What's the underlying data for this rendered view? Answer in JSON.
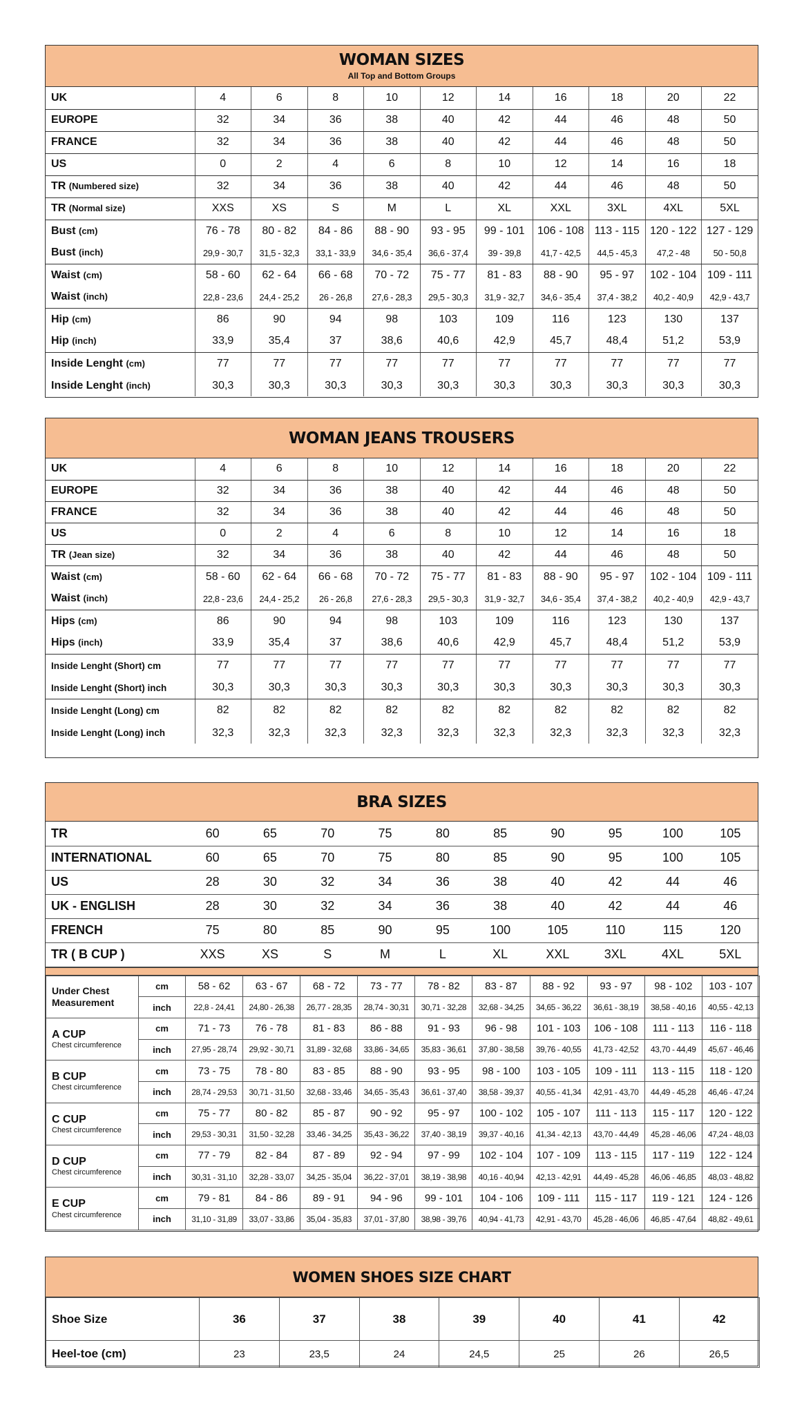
{
  "colors": {
    "header_bg": "#f6bd92",
    "border": "#333333"
  },
  "woman_sizes": {
    "title": "WOMAN SIZES",
    "subtitle": "All Top and Bottom Groups",
    "rows": [
      {
        "label": "UK",
        "unit": "",
        "values": [
          "4",
          "6",
          "8",
          "10",
          "12",
          "14",
          "16",
          "18",
          "20",
          "22"
        ]
      },
      {
        "label": "EUROPE",
        "unit": "",
        "values": [
          "32",
          "34",
          "36",
          "38",
          "40",
          "42",
          "44",
          "46",
          "48",
          "50"
        ]
      },
      {
        "label": "FRANCE",
        "unit": "",
        "values": [
          "32",
          "34",
          "36",
          "38",
          "40",
          "42",
          "44",
          "46",
          "48",
          "50"
        ]
      },
      {
        "label": "US",
        "unit": "",
        "values": [
          "0",
          "2",
          "4",
          "6",
          "8",
          "10",
          "12",
          "14",
          "16",
          "18"
        ]
      },
      {
        "label": "TR ",
        "unit": "(Numbered size)",
        "values": [
          "32",
          "34",
          "36",
          "38",
          "40",
          "42",
          "44",
          "46",
          "48",
          "50"
        ]
      },
      {
        "label": "TR ",
        "unit": "(Normal size)",
        "values": [
          "XXS",
          "XS",
          "S",
          "M",
          "L",
          "XL",
          "XXL",
          "3XL",
          "4XL",
          "5XL"
        ]
      },
      {
        "label": "Bust ",
        "unit": "(cm)",
        "values": [
          "76 - 78",
          "80 - 82",
          "84 - 86",
          "88 - 90",
          "93 - 95",
          "99 - 101",
          "106 - 108",
          "113 - 115",
          "120 - 122",
          "127 - 129"
        ]
      },
      {
        "label": "Bust ",
        "unit": "(inch)",
        "values": [
          "29,9 - 30,7",
          "31,5 - 32,3",
          "33,1 - 33,9",
          "34,6 - 35,4",
          "36,6 - 37,4",
          "39 - 39,8",
          "41,7 - 42,5",
          "44,5 - 45,3",
          "47,2 - 48",
          "50 - 50,8"
        ]
      },
      {
        "label": "Waist ",
        "unit": "(cm)",
        "values": [
          "58 - 60",
          "62 - 64",
          "66 - 68",
          "70 - 72",
          "75 - 77",
          "81 - 83",
          "88 - 90",
          "95 - 97",
          "102 - 104",
          "109 - 111"
        ]
      },
      {
        "label": "Waist ",
        "unit": "(inch)",
        "values": [
          "22,8 - 23,6",
          "24,4 - 25,2",
          "26 - 26,8",
          "27,6 - 28,3",
          "29,5 - 30,3",
          "31,9 - 32,7",
          "34,6 - 35,4",
          "37,4 - 38,2",
          "40,2 - 40,9",
          "42,9 - 43,7"
        ]
      },
      {
        "label": "Hip ",
        "unit": "(cm)",
        "values": [
          "86",
          "90",
          "94",
          "98",
          "103",
          "109",
          "116",
          "123",
          "130",
          "137"
        ]
      },
      {
        "label": "Hip ",
        "unit": "(inch)",
        "values": [
          "33,9",
          "35,4",
          "37",
          "38,6",
          "40,6",
          "42,9",
          "45,7",
          "48,4",
          "51,2",
          "53,9"
        ]
      },
      {
        "label": "Inside Lenght ",
        "unit": "(cm)",
        "values": [
          "77",
          "77",
          "77",
          "77",
          "77",
          "77",
          "77",
          "77",
          "77",
          "77"
        ]
      },
      {
        "label": "Inside Lenght ",
        "unit": "(inch)",
        "values": [
          "30,3",
          "30,3",
          "30,3",
          "30,3",
          "30,3",
          "30,3",
          "30,3",
          "30,3",
          "30,3",
          "30,3"
        ]
      }
    ]
  },
  "jeans": {
    "title": "WOMAN JEANS TROUSERS",
    "rows": [
      {
        "label": "UK",
        "unit": "",
        "values": [
          "4",
          "6",
          "8",
          "10",
          "12",
          "14",
          "16",
          "18",
          "20",
          "22"
        ]
      },
      {
        "label": "EUROPE",
        "unit": "",
        "values": [
          "32",
          "34",
          "36",
          "38",
          "40",
          "42",
          "44",
          "46",
          "48",
          "50"
        ]
      },
      {
        "label": "FRANCE",
        "unit": "",
        "values": [
          "32",
          "34",
          "36",
          "38",
          "40",
          "42",
          "44",
          "46",
          "48",
          "50"
        ]
      },
      {
        "label": "US",
        "unit": "",
        "values": [
          "0",
          "2",
          "4",
          "6",
          "8",
          "10",
          "12",
          "14",
          "16",
          "18"
        ]
      },
      {
        "label": "TR ",
        "unit": "(Jean size)",
        "values": [
          "32",
          "34",
          "36",
          "38",
          "40",
          "42",
          "44",
          "46",
          "48",
          "50"
        ]
      },
      {
        "label": "Waist ",
        "unit": "(cm)",
        "values": [
          "58 - 60",
          "62 - 64",
          "66 - 68",
          "70 - 72",
          "75 - 77",
          "81 - 83",
          "88 - 90",
          "95 - 97",
          "102 - 104",
          "109 - 111"
        ]
      },
      {
        "label": "Waist ",
        "unit": "(inch)",
        "values": [
          "22,8 - 23,6",
          "24,4 - 25,2",
          "26 - 26,8",
          "27,6 - 28,3",
          "29,5 - 30,3",
          "31,9 - 32,7",
          "34,6 - 35,4",
          "37,4 - 38,2",
          "40,2 - 40,9",
          "42,9 - 43,7"
        ]
      },
      {
        "label": "Hips ",
        "unit": "(cm)",
        "values": [
          "86",
          "90",
          "94",
          "98",
          "103",
          "109",
          "116",
          "123",
          "130",
          "137"
        ]
      },
      {
        "label": "Hips ",
        "unit": "(inch)",
        "values": [
          "33,9",
          "35,4",
          "37",
          "38,6",
          "40,6",
          "42,9",
          "45,7",
          "48,4",
          "51,2",
          "53,9"
        ]
      },
      {
        "label": "Inside Lenght (Short) cm",
        "unit": "",
        "values": [
          "77",
          "77",
          "77",
          "77",
          "77",
          "77",
          "77",
          "77",
          "77",
          "77"
        ]
      },
      {
        "label": "Inside Lenght (Short) inch",
        "unit": "",
        "values": [
          "30,3",
          "30,3",
          "30,3",
          "30,3",
          "30,3",
          "30,3",
          "30,3",
          "30,3",
          "30,3",
          "30,3"
        ]
      },
      {
        "label": "Inside Lenght (Long) cm",
        "unit": "",
        "values": [
          "82",
          "82",
          "82",
          "82",
          "82",
          "82",
          "82",
          "82",
          "82",
          "82"
        ]
      },
      {
        "label": "Inside Lenght (Long) inch",
        "unit": "",
        "values": [
          "32,3",
          "32,3",
          "32,3",
          "32,3",
          "32,3",
          "32,3",
          "32,3",
          "32,3",
          "32,3",
          "32,3"
        ]
      }
    ]
  },
  "bra": {
    "title": "BRA SIZES",
    "sizes": [
      {
        "label": "TR",
        "values": [
          "60",
          "65",
          "70",
          "75",
          "80",
          "85",
          "90",
          "95",
          "100",
          "105"
        ]
      },
      {
        "label": "INTERNATIONAL",
        "values": [
          "60",
          "65",
          "70",
          "75",
          "80",
          "85",
          "90",
          "95",
          "100",
          "105"
        ]
      },
      {
        "label": "US",
        "values": [
          "28",
          "30",
          "32",
          "34",
          "36",
          "38",
          "40",
          "42",
          "44",
          "46"
        ]
      },
      {
        "label": "UK - ENGLISH",
        "values": [
          "28",
          "30",
          "32",
          "34",
          "36",
          "38",
          "40",
          "42",
          "44",
          "46"
        ]
      },
      {
        "label": "FRENCH",
        "values": [
          "75",
          "80",
          "85",
          "90",
          "95",
          "100",
          "105",
          "110",
          "115",
          "120"
        ]
      },
      {
        "label": "TR ( B CUP )",
        "values": [
          "XXS",
          "XS",
          "S",
          "M",
          "L",
          "XL",
          "XXL",
          "3XL",
          "4XL",
          "5XL"
        ]
      }
    ],
    "measurements": [
      {
        "label": "Under Chest Measurement",
        "sub": "",
        "cm": [
          "58 - 62",
          "63 - 67",
          "68 - 72",
          "73 - 77",
          "78 - 82",
          "83 - 87",
          "88 - 92",
          "93 - 97",
          "98 - 102",
          "103 - 107"
        ],
        "inch": [
          "22,8 - 24,41",
          "24,80 - 26,38",
          "26,77 - 28,35",
          "28,74 - 30,31",
          "30,71 - 32,28",
          "32,68 - 34,25",
          "34,65 - 36,22",
          "36,61 - 38,19",
          "38,58 - 40,16",
          "40,55 - 42,13"
        ]
      },
      {
        "label": "A CUP",
        "sub": "Chest circumference",
        "cm": [
          "71 - 73",
          "76 - 78",
          "81 - 83",
          "86 - 88",
          "91 - 93",
          "96 - 98",
          "101 - 103",
          "106 - 108",
          "111 - 113",
          "116 - 118"
        ],
        "inch": [
          "27,95 - 28,74",
          "29,92 - 30,71",
          "31,89 - 32,68",
          "33,86 - 34,65",
          "35,83 - 36,61",
          "37,80 - 38,58",
          "39,76 - 40,55",
          "41,73 - 42,52",
          "43,70 - 44,49",
          "45,67 - 46,46"
        ]
      },
      {
        "label": "B CUP",
        "sub": "Chest circumference",
        "cm": [
          "73 - 75",
          "78 - 80",
          "83 - 85",
          "88 - 90",
          "93 - 95",
          "98 - 100",
          "103 - 105",
          "109 - 111",
          "113 - 115",
          "118 - 120"
        ],
        "inch": [
          "28,74 - 29,53",
          "30,71 - 31,50",
          "32,68 - 33,46",
          "34,65 - 35,43",
          "36,61 - 37,40",
          "38,58 - 39,37",
          "40,55 - 41,34",
          "42,91 - 43,70",
          "44,49 - 45,28",
          "46,46 - 47,24"
        ]
      },
      {
        "label": "C CUP",
        "sub": "Chest circumference",
        "cm": [
          "75 - 77",
          "80 - 82",
          "85 - 87",
          "90 - 92",
          "95 - 97",
          "100 - 102",
          "105 - 107",
          "111 - 113",
          "115 - 117",
          "120 - 122"
        ],
        "inch": [
          "29,53 - 30,31",
          "31,50 - 32,28",
          "33,46 - 34,25",
          "35,43 - 36,22",
          "37,40 - 38,19",
          "39,37 - 40,16",
          "41,34 - 42,13",
          "43,70 - 44,49",
          "45,28 - 46,06",
          "47,24 - 48,03"
        ]
      },
      {
        "label": "D CUP",
        "sub": "Chest circumference",
        "cm": [
          "77 - 79",
          "82 - 84",
          "87 - 89",
          "92 - 94",
          "97 - 99",
          "102 - 104",
          "107 - 109",
          "113 - 115",
          "117 - 119",
          "122 - 124"
        ],
        "inch": [
          "30,31 - 31,10",
          "32,28 - 33,07",
          "34,25 - 35,04",
          "36,22 - 37,01",
          "38,19 - 38,98",
          "40,16 - 40,94",
          "42,13 - 42,91",
          "44,49 - 45,28",
          "46,06 - 46,85",
          "48,03 - 48,82"
        ]
      },
      {
        "label": "E CUP",
        "sub": "Chest circumference",
        "cm": [
          "79 - 81",
          "84 - 86",
          "89 - 91",
          "94 - 96",
          "99 - 101",
          "104 - 106",
          "109 - 111",
          "115 - 117",
          "119 - 121",
          "124 - 126"
        ],
        "inch": [
          "31,10 - 31,89",
          "33,07 - 33,86",
          "35,04 - 35,83",
          "37,01 - 37,80",
          "38,98 - 39,76",
          "40,94 - 41,73",
          "42,91 - 43,70",
          "45,28 - 46,06",
          "46,85 - 47,64",
          "48,82 - 49,61"
        ]
      }
    ],
    "unit_cm": "cm",
    "unit_inch": "inch"
  },
  "shoes": {
    "title": "WOMEN SHOES SIZE CHART",
    "rows": [
      {
        "label": "Shoe Size",
        "values": [
          "36",
          "37",
          "38",
          "39",
          "40",
          "41",
          "42"
        ]
      },
      {
        "label": "Heel-toe (cm)",
        "values": [
          "23",
          "23,5",
          "24",
          "24,5",
          "25",
          "26",
          "26,5"
        ]
      }
    ]
  }
}
